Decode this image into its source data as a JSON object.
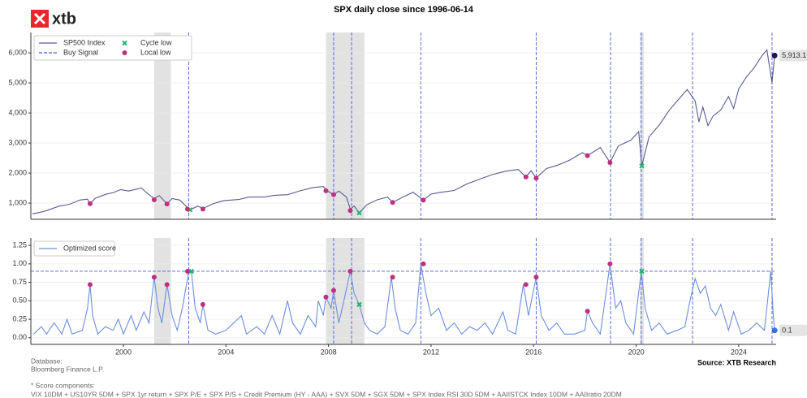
{
  "logo": "xtb",
  "notes": {
    "database_label": "Database:",
    "database": "Bloomberg Finance L.P.",
    "source": "Source: XTB Research",
    "components_label": "* Score components:",
    "components": "VIX 10DM + US10YR 5DM + SPX 1yr return + SPX P/E + SPX P/S + Credit Premium (HY - AAA) + SVX 5DM + SGX 5DM + SPX Index RSI  30D 5DM + AAIISTCK Index 10DM + AAIIratio 20DM"
  },
  "chart_data": [
    {
      "type": "line",
      "title": "SPX daily close since 1996-06-14",
      "xlim": [
        1996.39,
        2025.46
      ],
      "ylim": [
        460,
        6680
      ],
      "yticks": [
        {
          "value": 1000,
          "label": "1,000"
        },
        {
          "value": 2000,
          "label": "2,000"
        },
        {
          "value": 3000,
          "label": "3,000"
        },
        {
          "value": 4000,
          "label": "4,000"
        },
        {
          "value": 5000,
          "label": "5,000"
        },
        {
          "value": 6000,
          "label": "6,000"
        }
      ],
      "grid": true,
      "legend": "upper left",
      "shaded": [
        [
          2001.2,
          2001.85
        ],
        [
          2007.9,
          2009.4
        ],
        [
          2020.15,
          2020.3
        ]
      ],
      "series": [
        {
          "name": "SP500 Index",
          "color": "#5a5a96",
          "style": "line",
          "x": [
            1996.45,
            1996.8,
            1997.0,
            1997.5,
            1997.9,
            1998.3,
            1998.6,
            1998.7,
            1998.9,
            1999.3,
            1999.6,
            1999.9,
            2000.2,
            2000.7,
            2000.9,
            2001.2,
            2001.4,
            2001.7,
            2001.9,
            2002.2,
            2002.5,
            2002.6,
            2002.9,
            2003.1,
            2003.5,
            2003.9,
            2004.5,
            2004.9,
            2005.5,
            2005.9,
            2006.4,
            2006.9,
            2007.4,
            2007.8,
            2007.95,
            2008.2,
            2008.4,
            2008.7,
            2008.85,
            2009.0,
            2009.2,
            2009.5,
            2009.9,
            2010.3,
            2010.5,
            2010.9,
            2011.3,
            2011.7,
            2012.0,
            2012.4,
            2012.9,
            2013.4,
            2013.9,
            2014.4,
            2014.9,
            2015.4,
            2015.7,
            2015.9,
            2016.1,
            2016.5,
            2016.9,
            2017.4,
            2017.9,
            2018.1,
            2018.6,
            2018.98,
            2019.3,
            2019.8,
            2020.1,
            2020.22,
            2020.5,
            2020.9,
            2021.3,
            2021.7,
            2021.99,
            2022.3,
            2022.45,
            2022.6,
            2022.8,
            2023.0,
            2023.3,
            2023.6,
            2023.8,
            2024.0,
            2024.3,
            2024.6,
            2024.9,
            2025.1,
            2025.3,
            2025.4
          ],
          "values": [
            640,
            700,
            750,
            900,
            960,
            1100,
            1130,
            980,
            1160,
            1290,
            1350,
            1450,
            1400,
            1500,
            1350,
            1150,
            1250,
            970,
            1150,
            1100,
            850,
            776,
            900,
            820,
            980,
            1080,
            1120,
            1200,
            1200,
            1260,
            1280,
            1410,
            1520,
            1550,
            1410,
            1280,
            1400,
            1200,
            800,
            900,
            676,
            950,
            1110,
            1200,
            1020,
            1200,
            1360,
            1100,
            1300,
            1360,
            1420,
            1640,
            1800,
            1950,
            2060,
            2120,
            1870,
            2080,
            1830,
            2150,
            2250,
            2430,
            2680,
            2580,
            2850,
            2350,
            2900,
            3100,
            3380,
            2237,
            3200,
            3600,
            4100,
            4500,
            4780,
            4400,
            3700,
            4200,
            3580,
            3900,
            4100,
            4550,
            4150,
            4800,
            5200,
            5500,
            5900,
            6100,
            5000,
            5913.1
          ]
        },
        {
          "name": "Buy Signal",
          "color": "#4a5fd0",
          "style": "vline",
          "x": [
            2002.55,
            2008.2,
            2008.9,
            2011.6,
            2016.1,
            2019.0,
            2020.2,
            2022.2,
            2025.3
          ]
        },
        {
          "name": "Cycle low",
          "color": "#1fb56c",
          "style": "cross",
          "x": [
            2002.6,
            2009.2,
            2020.22
          ],
          "values": [
            776,
            676,
            2237
          ]
        },
        {
          "name": "Local low",
          "color": "#c0307f",
          "style": "circle",
          "x": [
            1998.7,
            2001.2,
            2001.7,
            2002.5,
            2003.1,
            2007.9,
            2008.2,
            2008.85,
            2010.5,
            2011.7,
            2015.7,
            2016.1,
            2018.1,
            2018.98
          ],
          "values": [
            980,
            1110,
            970,
            800,
            800,
            1410,
            1280,
            750,
            1020,
            1100,
            1870,
            1830,
            2580,
            2350
          ]
        }
      ],
      "last_point": {
        "x": 2025.4,
        "value": 5913.1,
        "label": "5,913.1",
        "color": "#1a1a5a"
      }
    },
    {
      "type": "line",
      "xlim": [
        1996.39,
        2025.46
      ],
      "ylim": [
        -0.09,
        1.35
      ],
      "xticks": [
        2000,
        2004,
        2008,
        2012,
        2016,
        2020,
        2024
      ],
      "yticks": [
        {
          "value": 0,
          "label": "0.00"
        },
        {
          "value": 0.25,
          "label": "0.25"
        },
        {
          "value": 0.5,
          "label": "0.50"
        },
        {
          "value": 0.75,
          "label": "0.75"
        },
        {
          "value": 1,
          "label": "1.00"
        },
        {
          "value": 1.25,
          "label": "1.25"
        }
      ],
      "grid": true,
      "legend": "upper left",
      "threshold": 0.9,
      "series": [
        {
          "name": "Optimized score",
          "color": "#6d8ee0",
          "style": "line",
          "x": [
            1996.5,
            1996.8,
            1997.0,
            1997.3,
            1997.6,
            1997.8,
            1998.0,
            1998.4,
            1998.6,
            1998.7,
            1998.8,
            1999.0,
            1999.3,
            1999.6,
            1999.8,
            2000.0,
            2000.3,
            2000.5,
            2000.8,
            2001.0,
            2001.2,
            2001.35,
            2001.5,
            2001.7,
            2001.9,
            2002.1,
            2002.3,
            2002.55,
            2002.65,
            2002.8,
            2003.0,
            2003.1,
            2003.3,
            2003.6,
            2004.0,
            2004.3,
            2004.6,
            2004.8,
            2005.2,
            2005.5,
            2005.8,
            2006.1,
            2006.4,
            2006.6,
            2006.9,
            2007.2,
            2007.5,
            2007.6,
            2007.8,
            2007.9,
            2008.1,
            2008.2,
            2008.4,
            2008.6,
            2008.85,
            2009.0,
            2009.2,
            2009.4,
            2009.6,
            2009.9,
            2010.2,
            2010.45,
            2010.6,
            2010.8,
            2011.1,
            2011.4,
            2011.6,
            2011.8,
            2012.0,
            2012.3,
            2012.6,
            2012.9,
            2013.2,
            2013.5,
            2013.8,
            2014.1,
            2014.4,
            2014.8,
            2015.0,
            2015.3,
            2015.6,
            2015.8,
            2016.1,
            2016.3,
            2016.6,
            2016.9,
            2017.2,
            2017.6,
            2018.0,
            2018.1,
            2018.3,
            2018.6,
            2018.98,
            2019.2,
            2019.4,
            2019.6,
            2019.9,
            2020.2,
            2020.35,
            2020.6,
            2020.9,
            2021.2,
            2021.6,
            2021.9,
            2022.1,
            2022.3,
            2022.5,
            2022.7,
            2022.9,
            2023.1,
            2023.3,
            2023.6,
            2023.8,
            2024.1,
            2024.4,
            2024.7,
            2025.0,
            2025.25,
            2025.35,
            2025.4
          ],
          "values": [
            0.05,
            0.15,
            0.05,
            0.2,
            0.05,
            0.25,
            0.05,
            0.1,
            0.4,
            0.72,
            0.3,
            0.05,
            0.15,
            0.1,
            0.25,
            0.05,
            0.3,
            0.1,
            0.35,
            0.2,
            0.82,
            0.4,
            0.2,
            0.72,
            0.3,
            0.1,
            0.4,
            0.9,
            0.9,
            0.4,
            0.2,
            0.45,
            0.1,
            0.05,
            0.1,
            0.2,
            0.3,
            0.05,
            0.15,
            0.05,
            0.3,
            0.05,
            0.5,
            0.2,
            0.05,
            0.3,
            0.15,
            0.5,
            0.3,
            0.55,
            0.4,
            0.64,
            0.2,
            0.5,
            0.9,
            0.6,
            0.45,
            0.2,
            0.1,
            0.05,
            0.15,
            0.82,
            0.4,
            0.1,
            0.05,
            0.2,
            1.0,
            0.6,
            0.3,
            0.4,
            0.1,
            0.2,
            0.05,
            0.15,
            0.1,
            0.2,
            0.05,
            0.35,
            0.1,
            0.05,
            0.72,
            0.3,
            0.82,
            0.3,
            0.1,
            0.2,
            0.05,
            0.05,
            0.1,
            0.36,
            0.2,
            0.05,
            1.0,
            0.4,
            0.5,
            0.2,
            0.05,
            0.9,
            0.4,
            0.1,
            0.2,
            0.05,
            0.1,
            0.15,
            0.5,
            0.8,
            0.6,
            0.7,
            0.4,
            0.3,
            0.45,
            0.1,
            0.35,
            0.05,
            0.1,
            0.2,
            0.1,
            0.9,
            0.3,
            0.1
          ]
        },
        {
          "color": "#1fb56c",
          "style": "cross",
          "x": [
            2002.65,
            2009.2,
            2020.22
          ],
          "values": [
            0.9,
            0.45,
            0.9
          ]
        },
        {
          "color": "#c0307f",
          "style": "circle",
          "x": [
            1998.7,
            2001.2,
            2001.7,
            2002.5,
            2003.1,
            2007.9,
            2008.2,
            2008.85,
            2010.5,
            2011.7,
            2015.7,
            2016.1,
            2018.1,
            2018.98
          ],
          "values": [
            0.72,
            0.82,
            0.72,
            0.9,
            0.45,
            0.55,
            0.64,
            0.9,
            0.82,
            1.0,
            0.72,
            0.82,
            0.36,
            1.0
          ]
        }
      ],
      "last_point": {
        "x": 2025.4,
        "value": 0.1,
        "label": "0.1",
        "color": "#3b6fe0"
      }
    }
  ]
}
